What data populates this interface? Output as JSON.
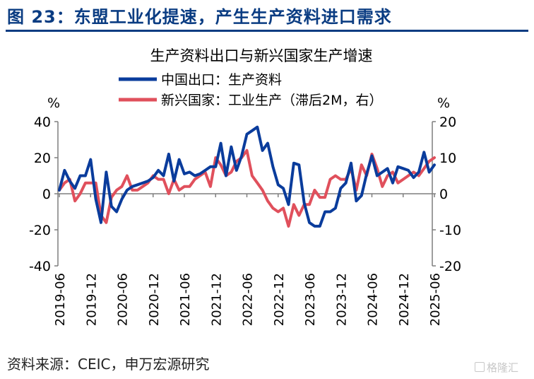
{
  "header": {
    "figure_title": "图 23：东盟工业化提速，产生生产资料进口需求"
  },
  "footer": {
    "source": "资料来源：CEIC，申万宏源研究",
    "watermark": "格隆汇"
  },
  "chart_data": {
    "type": "line",
    "title": "生产资料出口与新兴国家生产增速",
    "left_unit": "%",
    "right_unit": "%",
    "ylim_left": [
      -40,
      40
    ],
    "yticks_left": [
      -40,
      -20,
      0,
      20,
      40
    ],
    "ylim_right": [
      -20,
      20
    ],
    "yticks_right": [
      -20,
      -10,
      0,
      10,
      20
    ],
    "x_ticks": [
      "2019-06",
      "2019-12",
      "2020-06",
      "2020-12",
      "2021-06",
      "2021-12",
      "2022-06",
      "2022-12",
      "2023-06",
      "2023-12",
      "2024-06",
      "2024-12",
      "2025-06"
    ],
    "legend_position": "top",
    "grid": false,
    "series": [
      {
        "name": "中国出口：生产资料",
        "axis": "left",
        "color": "#0a3c9c",
        "x": [
          "2019-06",
          "2019-07",
          "2019-08",
          "2019-09",
          "2019-10",
          "2019-11",
          "2019-12",
          "2020-01",
          "2020-02",
          "2020-03",
          "2020-04",
          "2020-05",
          "2020-06",
          "2020-07",
          "2020-08",
          "2020-09",
          "2020-10",
          "2020-11",
          "2020-12",
          "2021-01",
          "2021-02",
          "2021-03",
          "2021-04",
          "2021-05",
          "2021-06",
          "2021-07",
          "2021-08",
          "2021-09",
          "2021-10",
          "2021-11",
          "2021-12",
          "2022-01",
          "2022-02",
          "2022-03",
          "2022-04",
          "2022-05",
          "2022-06",
          "2022-07",
          "2022-08",
          "2022-09",
          "2022-10",
          "2022-11",
          "2022-12",
          "2023-01",
          "2023-02",
          "2023-03",
          "2023-04",
          "2023-05",
          "2023-06",
          "2023-07",
          "2023-08",
          "2023-09",
          "2023-10",
          "2023-11",
          "2023-12",
          "2024-01",
          "2024-02",
          "2024-03",
          "2024-04",
          "2024-05",
          "2024-06",
          "2024-07",
          "2024-08",
          "2024-09",
          "2024-10",
          "2024-11",
          "2024-12",
          "2025-01",
          "2025-02",
          "2025-03",
          "2025-04",
          "2025-05",
          "2025-06"
        ],
        "values": [
          2,
          13,
          7,
          3,
          10,
          10,
          19,
          -3,
          -16,
          12,
          -7,
          -10,
          -3,
          2,
          4,
          5,
          6,
          7,
          9,
          13,
          10,
          22,
          7,
          19,
          11,
          12,
          10,
          11,
          13,
          15,
          15,
          28,
          10,
          26,
          13,
          21,
          33,
          35,
          37,
          24,
          28,
          15,
          5,
          3,
          -6,
          17,
          16,
          -5,
          -16,
          -18,
          -18,
          -10,
          -10,
          -8,
          3,
          6,
          17,
          -4,
          -1,
          11,
          21,
          10,
          12,
          14,
          6,
          15,
          14,
          13,
          9,
          12,
          23,
          12,
          16
        ]
      },
      {
        "name": "新兴国家：工业生产（滞后2M，右）",
        "axis": "right",
        "color": "#e0505c",
        "x": [
          "2019-06",
          "2019-07",
          "2019-08",
          "2019-09",
          "2019-10",
          "2019-11",
          "2019-12",
          "2020-01",
          "2020-02",
          "2020-03",
          "2020-04",
          "2020-05",
          "2020-06",
          "2020-07",
          "2020-08",
          "2020-09",
          "2020-10",
          "2020-11",
          "2020-12",
          "2021-01",
          "2021-02",
          "2021-03",
          "2021-04",
          "2021-05",
          "2021-06",
          "2021-07",
          "2021-08",
          "2021-09",
          "2021-10",
          "2021-11",
          "2021-12",
          "2022-01",
          "2022-02",
          "2022-03",
          "2022-04",
          "2022-05",
          "2022-06",
          "2022-07",
          "2022-08",
          "2022-09",
          "2022-10",
          "2022-11",
          "2022-12",
          "2023-01",
          "2023-02",
          "2023-03",
          "2023-04",
          "2023-05",
          "2023-06",
          "2023-07",
          "2023-08",
          "2023-09",
          "2023-10",
          "2023-11",
          "2023-12",
          "2024-01",
          "2024-02",
          "2024-03",
          "2024-04",
          "2024-05",
          "2024-06",
          "2024-07",
          "2024-08",
          "2024-09",
          "2024-10",
          "2024-11",
          "2024-12",
          "2025-01",
          "2025-02",
          "2025-03",
          "2025-04",
          "2025-05",
          "2025-06"
        ],
        "values": [
          1,
          3,
          4,
          -2,
          0,
          3,
          3,
          3,
          -6,
          -8,
          -1,
          1,
          2,
          5,
          1,
          1,
          2,
          3,
          5,
          4,
          4,
          0,
          4,
          1,
          2,
          2,
          4,
          5,
          6,
          2,
          10,
          8,
          5,
          6,
          9,
          10,
          12,
          5,
          3,
          1,
          -2,
          -4,
          -5,
          -4,
          -9,
          -3,
          -6,
          -3,
          -3,
          1,
          -1,
          -1,
          4,
          5,
          4,
          4,
          7,
          1,
          8,
          5,
          11,
          7,
          2,
          5,
          6,
          3,
          4,
          5,
          6,
          5,
          7,
          9,
          10
        ]
      }
    ]
  }
}
